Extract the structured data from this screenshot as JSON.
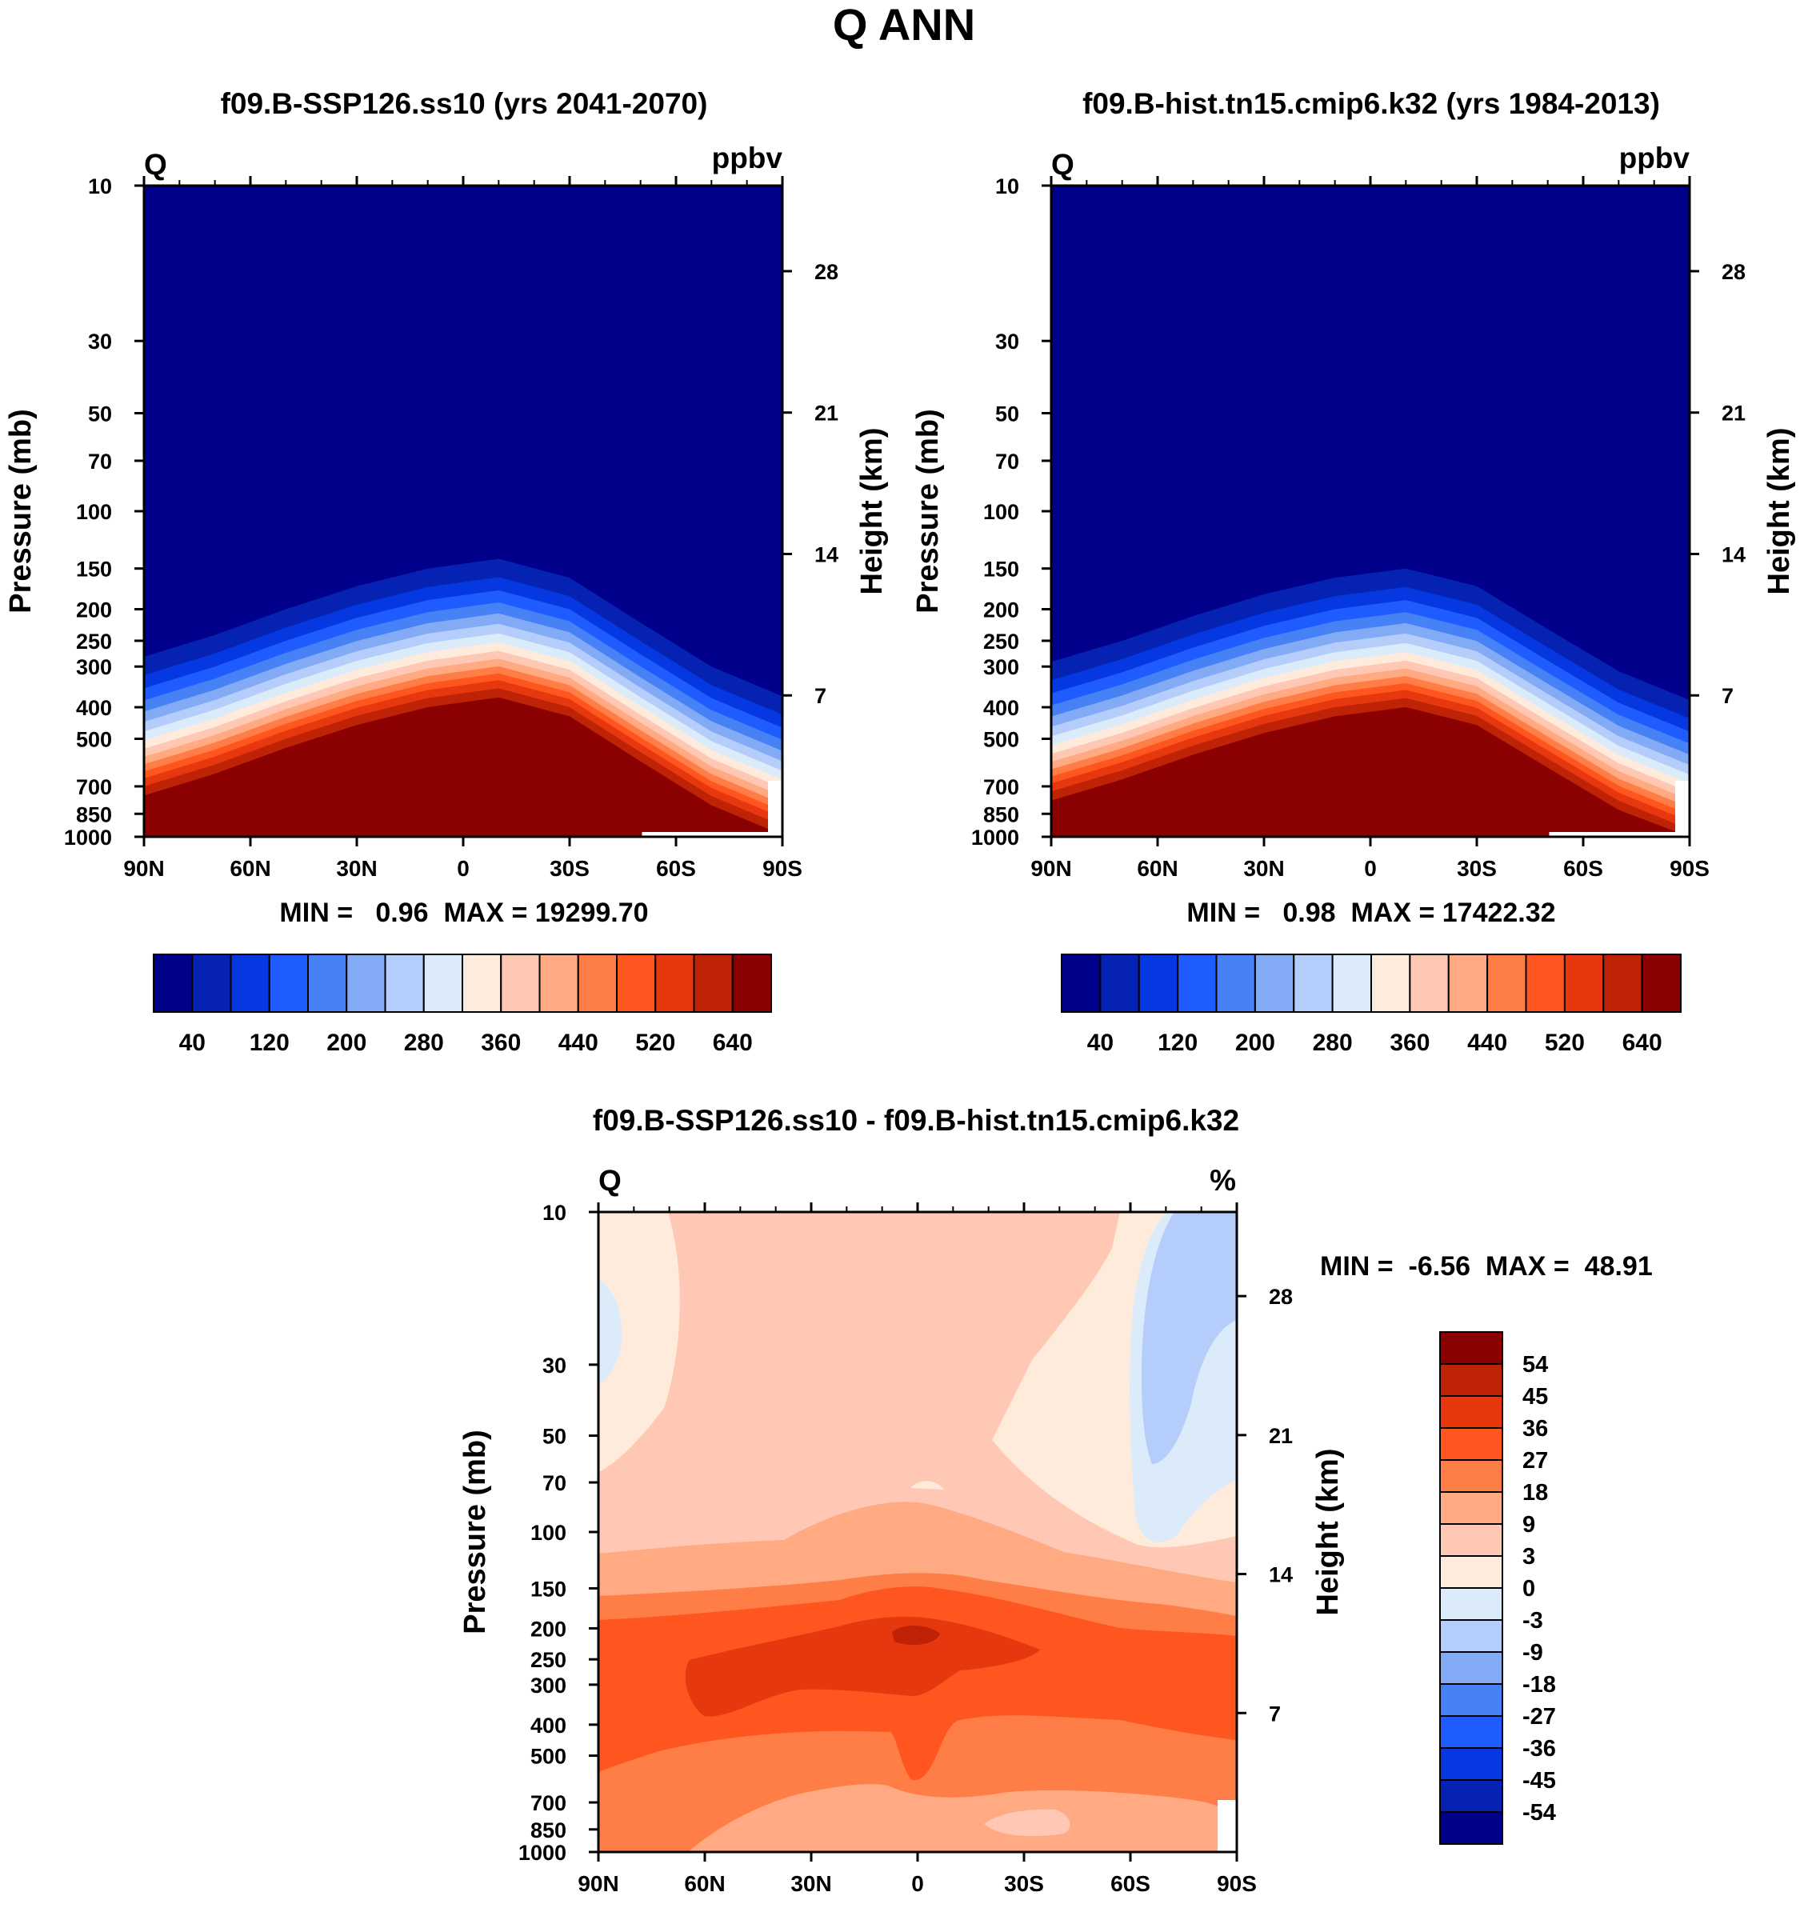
{
  "figure_title": "Q ANN",
  "colors": {
    "ppbv_scale": [
      "#00008b",
      "#0522b2",
      "#0538e0",
      "#1f5cff",
      "#4682f5",
      "#82aaf5",
      "#b4cdfa",
      "#dcebfa",
      "#ffebdc",
      "#ffc8b4",
      "#ffaa82",
      "#ff7d46",
      "#ff551e",
      "#e6370f",
      "#be2305",
      "#8b0000"
    ],
    "diff_scale": [
      "#00008b",
      "#0522b2",
      "#0538e0",
      "#1f5cff",
      "#4682f5",
      "#82aaf5",
      "#b4cdfa",
      "#dcebfa",
      "#ffebdc",
      "#ffc8b4",
      "#ffaa82",
      "#ff7d46",
      "#ff551e",
      "#e6370f",
      "#be2305",
      "#8b0000"
    ]
  },
  "chart_data": [
    {
      "type": "heatmap",
      "title": "f09.B-SSP126.ss10 (yrs 2041-2070)",
      "left_label": "Q",
      "units": "ppbv",
      "xlabel": "",
      "ylabel": "Pressure (mb)",
      "ylabel_right": "Height (km)",
      "x_ticks": [
        "90N",
        "60N",
        "30N",
        "0",
        "30S",
        "60S",
        "90S"
      ],
      "y_ticks": [
        "10",
        "30",
        "50",
        "70",
        "100",
        "150",
        "200",
        "250",
        "300",
        "400",
        "500",
        "700",
        "850",
        "1000"
      ],
      "y_ticks_right": [
        "28",
        "21",
        "14",
        "7"
      ],
      "min_max": "MIN =   0.96  MAX = 19299.70",
      "colorbar_labels": [
        "40",
        "120",
        "200",
        "280",
        "360",
        "440",
        "520",
        "640"
      ],
      "tropopause_mb": [
        280,
        240,
        200,
        170,
        150,
        140,
        160,
        220,
        300,
        370
      ]
    },
    {
      "type": "heatmap",
      "title": "f09.B-hist.tn15.cmip6.k32 (yrs 1984-2013)",
      "left_label": "Q",
      "units": "ppbv",
      "xlabel": "",
      "ylabel": "Pressure (mb)",
      "ylabel_right": "Height (km)",
      "x_ticks": [
        "90N",
        "60N",
        "30N",
        "0",
        "30S",
        "60S",
        "90S"
      ],
      "y_ticks": [
        "10",
        "30",
        "50",
        "70",
        "100",
        "150",
        "200",
        "250",
        "300",
        "400",
        "500",
        "700",
        "850",
        "1000"
      ],
      "y_ticks_right": [
        "28",
        "21",
        "14",
        "7"
      ],
      "min_max": "MIN =   0.98  MAX = 17422.32",
      "colorbar_labels": [
        "40",
        "120",
        "200",
        "280",
        "360",
        "440",
        "520",
        "640"
      ],
      "tropopause_mb": [
        290,
        250,
        210,
        180,
        160,
        150,
        170,
        230,
        310,
        380
      ]
    },
    {
      "type": "heatmap",
      "title": "f09.B-SSP126.ss10 - f09.B-hist.tn15.cmip6.k32",
      "left_label": "Q",
      "units": "%",
      "xlabel": "",
      "ylabel": "Pressure (mb)",
      "ylabel_right": "Height (km)",
      "x_ticks": [
        "90N",
        "60N",
        "30N",
        "0",
        "30S",
        "60S",
        "90S"
      ],
      "y_ticks": [
        "10",
        "30",
        "50",
        "70",
        "100",
        "150",
        "200",
        "250",
        "300",
        "400",
        "500",
        "700",
        "850",
        "1000"
      ],
      "y_ticks_right": [
        "28",
        "21",
        "14",
        "7"
      ],
      "min_max": "MIN =  -6.56  MAX =  48.91",
      "colorbar_labels": [
        "54",
        "45",
        "36",
        "27",
        "18",
        "9",
        "3",
        "0",
        "-3",
        "-9",
        "-18",
        "-27",
        "-36",
        "-45",
        "-54"
      ]
    }
  ]
}
